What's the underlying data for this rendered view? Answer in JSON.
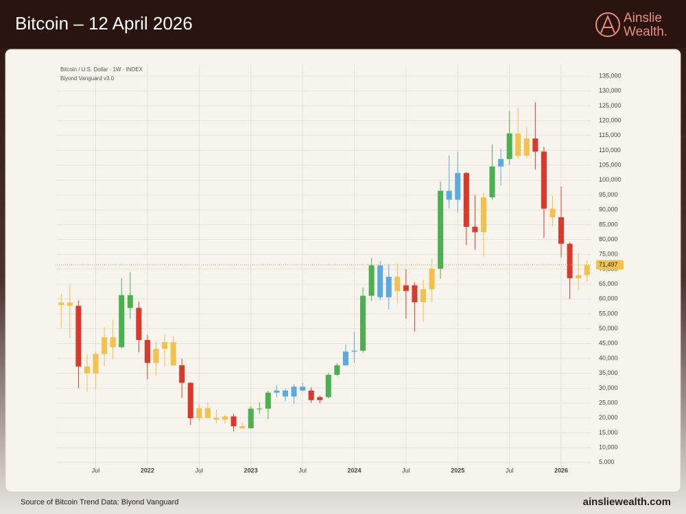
{
  "header": {
    "title": "Bitcoin – 12 April 2026",
    "logo": [
      "Ainslie",
      "Wealth."
    ]
  },
  "footer": {
    "source": "Source of Bitcoin Trend Data: Biyond Vanguard",
    "site": "ainsliewealth.com"
  },
  "chart_data": {
    "type": "candlestick",
    "title": "Bitcoin / U.S. Dollar · 1W · INDEX",
    "subtitle": "Biyond Vanguard v3.0",
    "categories": [
      null,
      null,
      null,
      null,
      "Jul",
      null,
      null,
      null,
      null,
      null,
      "2022",
      null,
      null,
      null,
      null,
      null,
      "Jul",
      null,
      null,
      null,
      null,
      null,
      "2023",
      null,
      null,
      null,
      null,
      null,
      "Jul",
      null,
      null,
      null,
      null,
      null,
      "2024",
      null,
      null,
      null,
      null,
      null,
      "Jul",
      null,
      null,
      null,
      null,
      null,
      "2025",
      null,
      null,
      null,
      null,
      null,
      "Jul",
      null,
      null,
      null,
      null,
      null,
      "2026",
      null,
      null,
      null
    ],
    "open": [
      58000,
      58800,
      57700,
      37300,
      35000,
      41500,
      47100,
      43800,
      61300,
      57000,
      46200,
      38500,
      43200,
      45500,
      37700,
      31800,
      19900,
      23300,
      20000,
      19400,
      20500,
      17200,
      16500,
      23100,
      23100,
      28500,
      29200,
      27200,
      30500,
      29200,
      26000,
      27000,
      34500,
      37700,
      42300,
      42600,
      61100,
      71300,
      60600,
      67500,
      62700,
      64600,
      58900,
      63300,
      70200,
      96400,
      93400,
      102400,
      84300,
      82500,
      94200,
      104600,
      107100,
      115700,
      108200,
      114000,
      109600,
      90400,
      87500,
      78600,
      67000,
      68000
    ],
    "high": [
      61700,
      64800,
      59500,
      41300,
      42400,
      50500,
      52900,
      67000,
      69000,
      59100,
      47900,
      45800,
      48200,
      47400,
      40000,
      31900,
      24700,
      25200,
      22700,
      21000,
      21400,
      18400,
      23900,
      25200,
      29100,
      31000,
      29800,
      31400,
      31800,
      30200,
      27500,
      35200,
      38400,
      44700,
      48900,
      63900,
      73800,
      72700,
      71900,
      72000,
      70000,
      65600,
      66500,
      73600,
      99600,
      108300,
      109600,
      102700,
      95000,
      95700,
      111900,
      110600,
      123200,
      124400,
      117900,
      126200,
      111200,
      94600,
      97900,
      79000,
      75500,
      73000
    ],
    "low": [
      50300,
      47000,
      30000,
      28800,
      29300,
      37300,
      39600,
      43300,
      53300,
      42000,
      33000,
      34300,
      37200,
      37700,
      26700,
      17600,
      18800,
      19600,
      18200,
      18200,
      15500,
      16300,
      16500,
      21400,
      19600,
      27000,
      25800,
      24800,
      28900,
      25100,
      24900,
      26600,
      34100,
      37600,
      38500,
      41900,
      59300,
      59600,
      56500,
      58400,
      53500,
      49000,
      52500,
      58900,
      66800,
      90500,
      89200,
      78200,
      76600,
      74400,
      93400,
      98200,
      105200,
      107300,
      107300,
      103500,
      80600,
      84400,
      74000,
      60000,
      63000,
      65800
    ],
    "close": [
      58800,
      57700,
      37300,
      35000,
      41500,
      47100,
      43800,
      61300,
      57000,
      46200,
      38500,
      43200,
      45500,
      37700,
      31800,
      19900,
      23300,
      20000,
      19400,
      20500,
      17200,
      16500,
      23100,
      23100,
      28500,
      29200,
      27200,
      30500,
      29200,
      26000,
      27000,
      34500,
      37700,
      42300,
      42600,
      61100,
      71300,
      60600,
      67500,
      62700,
      64600,
      58900,
      63300,
      70200,
      96400,
      93400,
      102400,
      84300,
      82500,
      94200,
      104600,
      107100,
      115700,
      108200,
      114000,
      109600,
      90400,
      87500,
      78600,
      67000,
      68000,
      71497
    ],
    "colors": [
      "#f2c14e",
      "#f2c14e",
      "#d93a2b",
      "#f2c14e",
      "#f2c14e",
      "#f2c14e",
      "#f2c14e",
      "#4caf50",
      "#4caf50",
      "#d93a2b",
      "#d93a2b",
      "#f2c14e",
      "#f2c14e",
      "#f2c14e",
      "#d93a2b",
      "#d93a2b",
      "#f2c14e",
      "#f2c14e",
      "#f2c14e",
      "#f2c14e",
      "#d93a2b",
      "#f2c14e",
      "#4caf50",
      "#4caf50",
      "#4caf50",
      "#5aa9e0",
      "#5aa9e0",
      "#5aa9e0",
      "#5aa9e0",
      "#d93a2b",
      "#d93a2b",
      "#4caf50",
      "#4caf50",
      "#5aa9e0",
      "#5aa9e0",
      "#4caf50",
      "#4caf50",
      "#5aa9e0",
      "#5aa9e0",
      "#f2c14e",
      "#d93a2b",
      "#d93a2b",
      "#f2c14e",
      "#f2c14e",
      "#4caf50",
      "#5aa9e0",
      "#5aa9e0",
      "#d93a2b",
      "#d93a2b",
      "#f2c14e",
      "#4caf50",
      "#5aa9e0",
      "#4caf50",
      "#f2c14e",
      "#f2c14e",
      "#d93a2b",
      "#d93a2b",
      "#f2c14e",
      "#d93a2b",
      "#d93a2b",
      "#f2c14e",
      "#f2c14e"
    ],
    "last_price": {
      "value": 71497,
      "label": "71,497"
    },
    "ylim": [
      1500,
      138700
    ],
    "yticks": [
      {
        "value": 5000,
        "label": "5.000"
      },
      {
        "value": 10000,
        "label": "10,000"
      },
      {
        "value": 15000,
        "label": "15,000"
      },
      {
        "value": 20000,
        "label": "20,000"
      },
      {
        "value": 25000,
        "label": "25,000"
      },
      {
        "value": 30000,
        "label": "30,000"
      },
      {
        "value": 35000,
        "label": "35,000"
      },
      {
        "value": 40000,
        "label": "40,000"
      },
      {
        "value": 45000,
        "label": "45,000"
      },
      {
        "value": 50000,
        "label": "50,000"
      },
      {
        "value": 55000,
        "label": "55,000"
      },
      {
        "value": 60000,
        "label": "60,000"
      },
      {
        "value": 65000,
        "label": "65,000"
      },
      {
        "value": 70000,
        "label": "70,000"
      },
      {
        "value": 75000,
        "label": "75,000"
      },
      {
        "value": 80000,
        "label": "80,000"
      },
      {
        "value": 85000,
        "label": "85,000"
      },
      {
        "value": 90000,
        "label": "90,000"
      },
      {
        "value": 95000,
        "label": "95,000"
      },
      {
        "value": 100000,
        "label": "100,000"
      },
      {
        "value": 105000,
        "label": "105,000"
      },
      {
        "value": 110000,
        "label": "110,000"
      },
      {
        "value": 115000,
        "label": "115,000"
      },
      {
        "value": 120000,
        "label": "120,000"
      },
      {
        "value": 125000,
        "label": "125,000"
      },
      {
        "value": 130000,
        "label": "130,000"
      },
      {
        "value": 135000,
        "label": "135,000"
      }
    ],
    "grid": true
  }
}
